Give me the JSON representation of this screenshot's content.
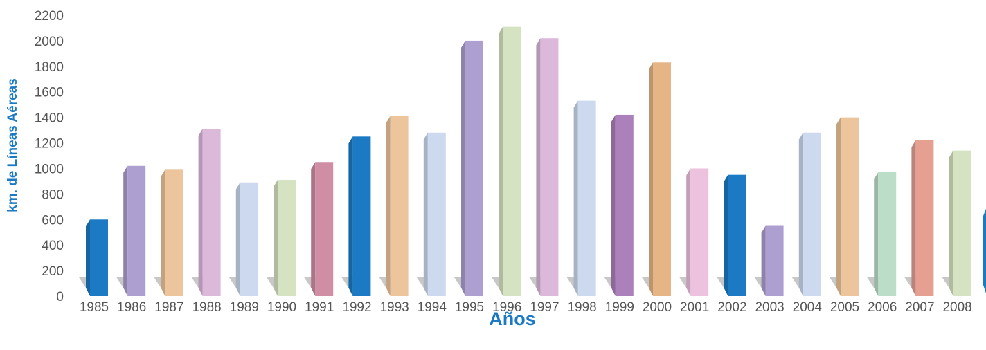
{
  "chart_data": {
    "type": "bar",
    "xlabel": "Años",
    "ylabel": "km. de Líneas Aéreas",
    "ylim": [
      0,
      2200
    ],
    "yticks": [
      0,
      200,
      400,
      600,
      800,
      1000,
      1200,
      1400,
      1600,
      1800,
      2000,
      2200
    ],
    "categories": [
      "1985",
      "1986",
      "1987",
      "1988",
      "1989",
      "1990",
      "1991",
      "1992",
      "1993",
      "1994",
      "1995",
      "1996",
      "1997",
      "1998",
      "1999",
      "2000",
      "2001",
      "2002",
      "2003",
      "2004",
      "2005",
      "2006",
      "2007",
      "2008"
    ],
    "values": [
      600,
      1020,
      990,
      1310,
      890,
      910,
      1050,
      1250,
      1410,
      1280,
      2000,
      2110,
      2020,
      1530,
      1420,
      1830,
      1000,
      950,
      550,
      1280,
      1400,
      970,
      1220,
      1140
    ],
    "colors": [
      "#1b7ac3",
      "#ad9fcf",
      "#ecc59d",
      "#dcb8db",
      "#ccd9ef",
      "#d6e3c2",
      "#d08ea5",
      "#1b7ac3",
      "#ecc59d",
      "#ccd9ef",
      "#ad9fcf",
      "#d6e3c2",
      "#dcb8db",
      "#ccd9ef",
      "#ab80bb",
      "#e5b585",
      "#edc2de",
      "#1b7ac3",
      "#ad9fcf",
      "#ccd9ef",
      "#ecc59d",
      "#bcdec9",
      "#e5a092",
      "#d6e3c2"
    ],
    "grid": false,
    "legend": "none"
  }
}
